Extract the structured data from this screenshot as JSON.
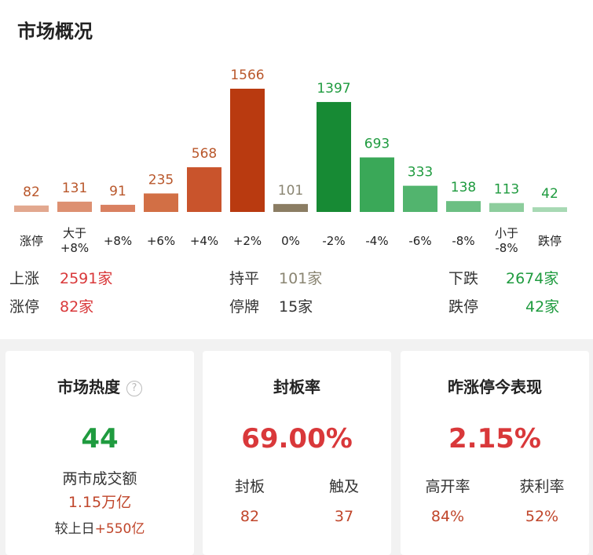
{
  "header": {
    "title": "市场概况"
  },
  "chart_data": {
    "type": "bar",
    "categories": [
      "涨停",
      "大于\n+8%",
      "+8%",
      "+6%",
      "+4%",
      "+2%",
      "0%",
      "-2%",
      "-4%",
      "-6%",
      "-8%",
      "小于\n-8%",
      "跌停"
    ],
    "values": [
      82,
      131,
      91,
      235,
      568,
      1566,
      101,
      1397,
      693,
      333,
      138,
      113,
      42
    ],
    "colors": [
      "#e2a88f",
      "#dd9071",
      "#d98060",
      "#d26f45",
      "#c9542c",
      "#b93a10",
      "#8b7d63",
      "#178a34",
      "#3aa858",
      "#52b46e",
      "#6cbf83",
      "#8dcd9d",
      "#a8d9b4"
    ],
    "label_colors": [
      "#b9572b",
      "#b9572b",
      "#b9572b",
      "#b9572b",
      "#b9572b",
      "#b9572b",
      "#8a8572",
      "#1f9b3f",
      "#1f9b3f",
      "#1f9b3f",
      "#1f9b3f",
      "#1f9b3f",
      "#1f9b3f"
    ]
  },
  "stats": {
    "up_label": "上涨",
    "up_value": "2591家",
    "flat_label": "持平",
    "flat_value": "101家",
    "down_label": "下跌",
    "down_value": "2674家",
    "limit_up_label": "涨停",
    "limit_up_value": "82家",
    "suspend_label": "停牌",
    "suspend_value": "15家",
    "limit_down_label": "跌停",
    "limit_down_value": "42家"
  },
  "cards": {
    "heat": {
      "title": "市场热度",
      "help": "?",
      "value": "44",
      "turnover_label": "两市成交额",
      "turnover_value": "1.15万亿",
      "compare_label": "较上日",
      "compare_value": "+550亿"
    },
    "seal": {
      "title": "封板率",
      "value": "69.00%",
      "sealed_label": "封板",
      "sealed_value": "82",
      "touched_label": "触及",
      "touched_value": "37"
    },
    "perf": {
      "title": "昨涨停今表现",
      "value": "2.15%",
      "open_label": "高开率",
      "open_value": "84%",
      "profit_label": "获利率",
      "profit_value": "52%"
    }
  }
}
